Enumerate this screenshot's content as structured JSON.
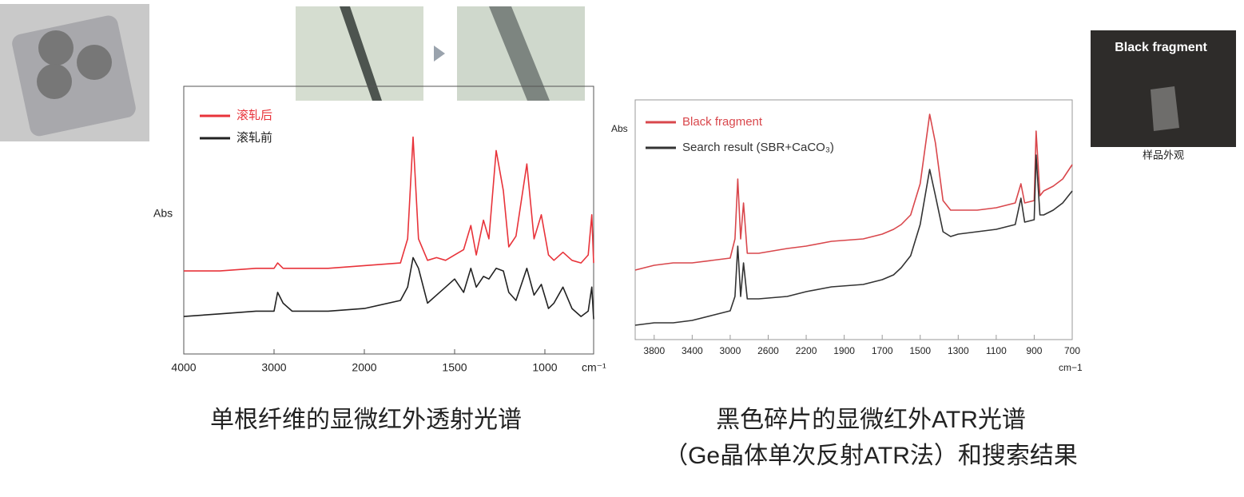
{
  "chart_data": [
    {
      "type": "line",
      "y_label": "Abs",
      "x_label": "cm⁻¹",
      "x": [
        4000,
        3600,
        3200,
        3000,
        2960,
        2900,
        2800,
        2400,
        2000,
        1800,
        1760,
        1730,
        1700,
        1650,
        1600,
        1550,
        1500,
        1450,
        1410,
        1380,
        1340,
        1310,
        1270,
        1230,
        1200,
        1160,
        1100,
        1060,
        1020,
        980,
        950,
        900,
        850,
        800,
        760,
        740,
        730
      ],
      "series": [
        {
          "name": "滚轧后",
          "color": "#e8333a",
          "values": [
            0.31,
            0.31,
            0.32,
            0.32,
            0.34,
            0.32,
            0.32,
            0.32,
            0.33,
            0.34,
            0.43,
            0.81,
            0.43,
            0.35,
            0.36,
            0.35,
            0.37,
            0.39,
            0.48,
            0.37,
            0.5,
            0.43,
            0.76,
            0.61,
            0.4,
            0.44,
            0.71,
            0.43,
            0.52,
            0.37,
            0.35,
            0.38,
            0.35,
            0.34,
            0.37,
            0.52,
            0.34
          ]
        },
        {
          "name": "滚轧前",
          "color": "#222222",
          "values": [
            0.14,
            0.15,
            0.16,
            0.16,
            0.23,
            0.19,
            0.16,
            0.16,
            0.17,
            0.2,
            0.25,
            0.36,
            0.32,
            0.19,
            0.22,
            0.25,
            0.28,
            0.23,
            0.32,
            0.25,
            0.29,
            0.28,
            0.32,
            0.31,
            0.23,
            0.2,
            0.32,
            0.22,
            0.26,
            0.17,
            0.19,
            0.25,
            0.17,
            0.14,
            0.16,
            0.25,
            0.13
          ]
        }
      ],
      "xlim": [
        4000,
        730
      ],
      "xticks": [
        4000,
        3000,
        2000,
        1500,
        1000
      ],
      "ylim": [
        0,
        1
      ],
      "caption": [
        "单根纤维的显微红外透射光谱"
      ]
    },
    {
      "type": "line",
      "y_label": "Abs",
      "x_label": "cm−1",
      "x": [
        4000,
        3800,
        3600,
        3400,
        3200,
        3000,
        2950,
        2920,
        2890,
        2860,
        2820,
        2700,
        2400,
        2200,
        2000,
        1800,
        1700,
        1640,
        1600,
        1550,
        1500,
        1450,
        1420,
        1380,
        1340,
        1300,
        1200,
        1100,
        1000,
        970,
        950,
        900,
        890,
        870,
        850,
        800,
        750,
        700
      ],
      "series": [
        {
          "name": "Black fragment",
          "color": "#d9474c",
          "values": [
            0.29,
            0.31,
            0.32,
            0.32,
            0.33,
            0.34,
            0.42,
            0.67,
            0.42,
            0.57,
            0.36,
            0.36,
            0.38,
            0.39,
            0.41,
            0.42,
            0.44,
            0.46,
            0.48,
            0.52,
            0.65,
            0.94,
            0.82,
            0.58,
            0.54,
            0.54,
            0.54,
            0.55,
            0.57,
            0.65,
            0.57,
            0.58,
            0.87,
            0.6,
            0.62,
            0.64,
            0.67,
            0.73
          ]
        },
        {
          "name": "Search result (SBR+CaCO₃)",
          "color": "#333333",
          "values": [
            0.06,
            0.07,
            0.07,
            0.08,
            0.1,
            0.12,
            0.18,
            0.39,
            0.18,
            0.32,
            0.17,
            0.17,
            0.18,
            0.2,
            0.22,
            0.23,
            0.25,
            0.27,
            0.3,
            0.35,
            0.48,
            0.71,
            0.6,
            0.45,
            0.43,
            0.44,
            0.45,
            0.46,
            0.48,
            0.59,
            0.49,
            0.5,
            0.77,
            0.52,
            0.52,
            0.54,
            0.57,
            0.62
          ]
        }
      ],
      "xlim": [
        4000,
        700
      ],
      "xticks": [
        3800,
        3400,
        3000,
        2600,
        2200,
        1900,
        1700,
        1500,
        1300,
        1100,
        900,
        700
      ],
      "ylim": [
        0,
        1
      ],
      "caption": [
        "黑色碎片的显微红外ATR光谱",
        "（Ge晶体单次反射ATR法）和搜索结果"
      ]
    }
  ],
  "photo": {
    "title": "Black fragment",
    "caption": "样品外观"
  }
}
